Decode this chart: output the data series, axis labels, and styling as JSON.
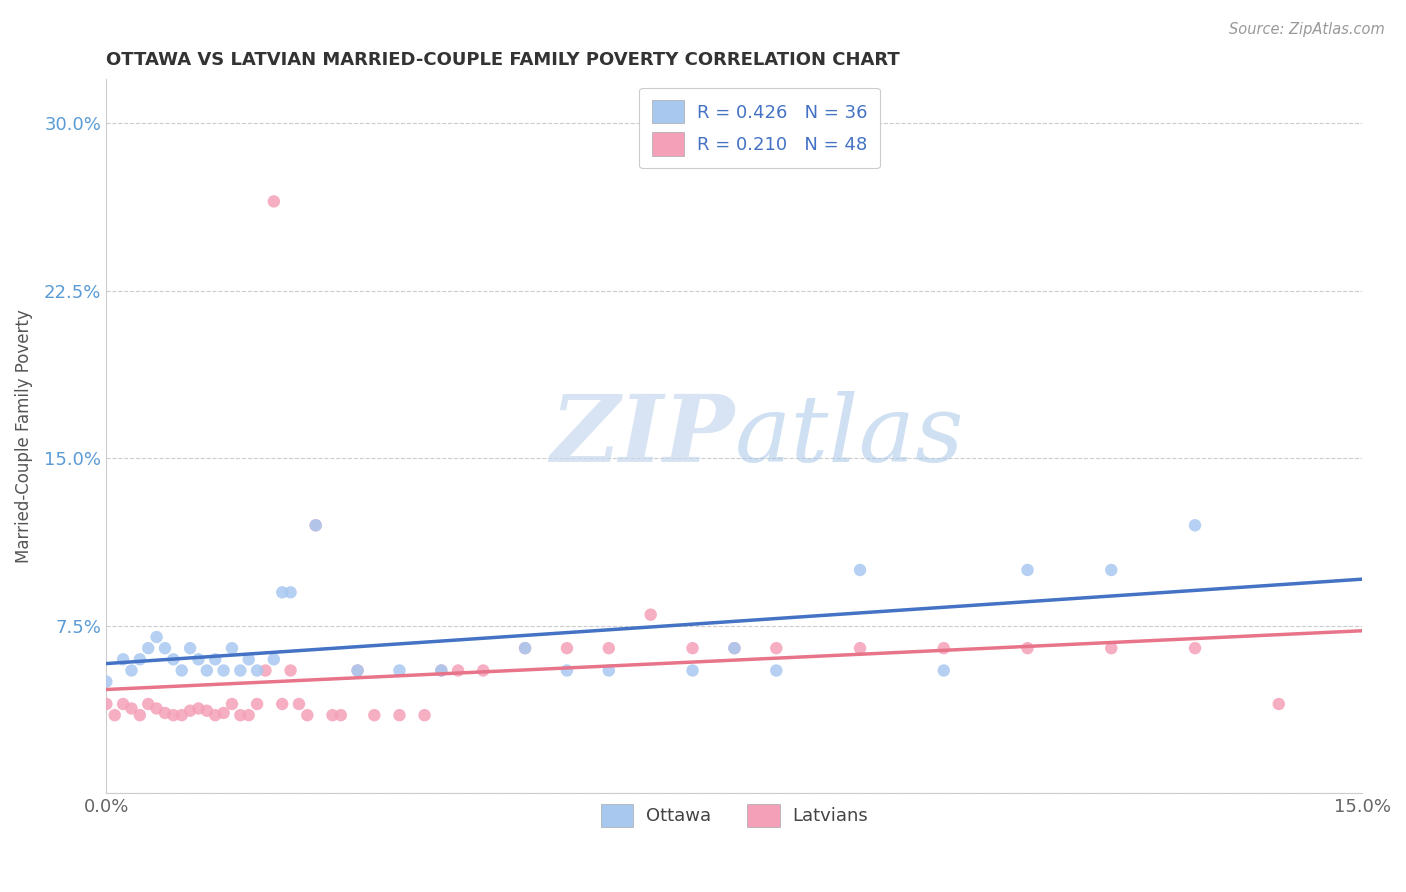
{
  "title": "OTTAWA VS LATVIAN MARRIED-COUPLE FAMILY POVERTY CORRELATION CHART",
  "source_text": "Source: ZipAtlas.com",
  "ylabel": "Married-Couple Family Poverty",
  "xlim": [
    0.0,
    0.15
  ],
  "ylim": [
    0.0,
    0.32
  ],
  "xticks": [
    0.0,
    0.05,
    0.1,
    0.15
  ],
  "xticklabels": [
    "0.0%",
    "",
    "",
    "15.0%"
  ],
  "yticks": [
    0.0,
    0.075,
    0.15,
    0.225,
    0.3
  ],
  "yticklabels": [
    "",
    "7.5%",
    "15.0%",
    "22.5%",
    "30.0%"
  ],
  "ottawa_color": "#a8c8f0",
  "latvian_color": "#f4a0b8",
  "ottawa_line_color": "#4472c4",
  "latvian_line_color": "#e8748a",
  "legend_text_color": "#4472c4",
  "watermark_color": "#c8d8ee",
  "ottawa_R": 0.426,
  "ottawa_N": 36,
  "latvian_R": 0.21,
  "latvian_N": 48,
  "ottawa_x": [
    0.0,
    0.002,
    0.003,
    0.004,
    0.005,
    0.006,
    0.007,
    0.008,
    0.009,
    0.01,
    0.011,
    0.012,
    0.013,
    0.014,
    0.015,
    0.016,
    0.017,
    0.018,
    0.02,
    0.021,
    0.022,
    0.025,
    0.03,
    0.035,
    0.04,
    0.05,
    0.055,
    0.06,
    0.07,
    0.075,
    0.08,
    0.09,
    0.1,
    0.11,
    0.12,
    0.13
  ],
  "ottawa_y": [
    0.05,
    0.06,
    0.055,
    0.06,
    0.065,
    0.07,
    0.065,
    0.06,
    0.055,
    0.065,
    0.06,
    0.055,
    0.06,
    0.055,
    0.065,
    0.055,
    0.06,
    0.055,
    0.06,
    0.09,
    0.09,
    0.12,
    0.055,
    0.055,
    0.055,
    0.065,
    0.055,
    0.055,
    0.055,
    0.065,
    0.055,
    0.1,
    0.055,
    0.1,
    0.1,
    0.12
  ],
  "latvian_x": [
    0.0,
    0.001,
    0.002,
    0.003,
    0.004,
    0.005,
    0.006,
    0.007,
    0.008,
    0.009,
    0.01,
    0.011,
    0.012,
    0.013,
    0.014,
    0.015,
    0.016,
    0.017,
    0.018,
    0.019,
    0.02,
    0.021,
    0.022,
    0.023,
    0.024,
    0.025,
    0.027,
    0.028,
    0.03,
    0.032,
    0.035,
    0.038,
    0.04,
    0.042,
    0.045,
    0.05,
    0.055,
    0.06,
    0.065,
    0.07,
    0.075,
    0.08,
    0.09,
    0.1,
    0.11,
    0.12,
    0.13,
    0.14
  ],
  "latvian_y": [
    0.04,
    0.035,
    0.04,
    0.038,
    0.035,
    0.04,
    0.038,
    0.036,
    0.035,
    0.035,
    0.037,
    0.038,
    0.037,
    0.035,
    0.036,
    0.04,
    0.035,
    0.035,
    0.04,
    0.055,
    0.265,
    0.04,
    0.055,
    0.04,
    0.035,
    0.12,
    0.035,
    0.035,
    0.055,
    0.035,
    0.035,
    0.035,
    0.055,
    0.055,
    0.055,
    0.065,
    0.065,
    0.065,
    0.08,
    0.065,
    0.065,
    0.065,
    0.065,
    0.065,
    0.065,
    0.065,
    0.065,
    0.04
  ]
}
